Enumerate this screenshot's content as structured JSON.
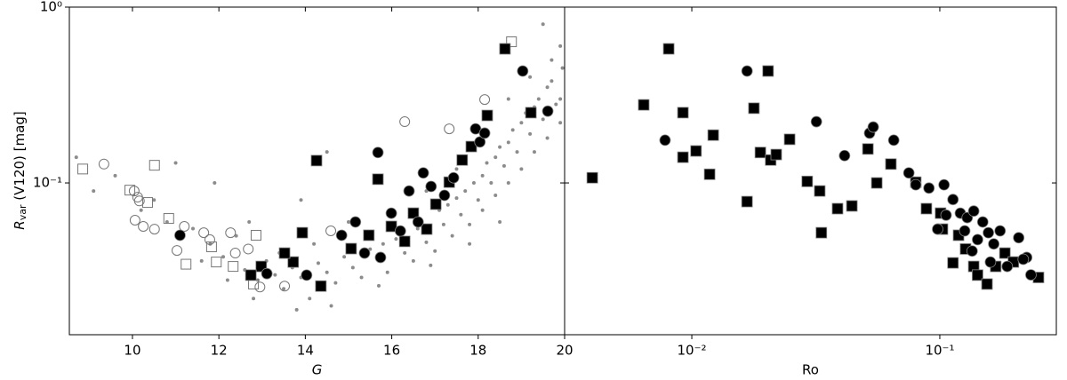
{
  "chart_data": [
    {
      "type": "scatter",
      "xlabel": "G",
      "ylabel": [
        "R",
        "var",
        " (V120) [mag]"
      ],
      "xlim": [
        8.54,
        20
      ],
      "xticks": [
        10,
        12,
        14,
        16,
        18,
        20
      ],
      "ylim": [
        0.0137,
        1
      ],
      "yscale": "log",
      "yticks": [
        {
          "value": 1,
          "label": "10⁰"
        },
        {
          "value": 0.1,
          "label": "10⁻¹"
        }
      ],
      "series": [
        {
          "marker": "dot",
          "color": "#8c8c8c",
          "x": [
            8.7,
            9.1,
            9.6,
            10.2,
            10.8,
            11.0,
            11.4,
            11.8,
            12.1,
            12.4,
            12.6,
            12.9,
            13.1,
            13.3,
            13.5,
            13.7,
            13.9,
            14.1,
            14.3,
            14.5,
            14.7,
            14.9,
            15.1,
            15.3,
            15.5,
            15.7,
            15.9,
            16.1,
            16.3,
            16.5,
            16.6,
            16.8,
            17.0,
            17.1,
            17.2,
            17.4,
            17.5,
            17.6,
            17.8,
            17.9,
            18.0,
            18.1,
            18.2,
            18.3,
            18.4,
            18.5,
            18.6,
            18.7,
            18.8,
            18.9,
            19.0,
            19.1,
            19.2,
            19.3,
            19.4,
            19.5,
            19.6,
            19.7,
            19.8,
            19.9,
            19.95,
            19.9,
            19.5,
            19.7,
            18.5,
            17.8,
            16.9,
            15.7,
            14.6,
            13.8,
            12.8,
            12.2,
            11.6,
            16.0,
            15.0,
            14.5,
            13.9,
            17.5,
            18.7,
            19.2,
            16.8,
            15.4,
            14.2,
            13.4,
            12.7,
            11.9,
            10.5,
            19.9,
            19.6,
            19.3,
            19.0,
            18.7,
            18.4,
            18.1,
            17.7,
            17.3,
            16.7,
            16.2,
            15.8
          ],
          "values": [
            0.14,
            0.09,
            0.11,
            0.07,
            0.06,
            0.13,
            0.055,
            0.045,
            0.038,
            0.05,
            0.032,
            0.028,
            0.036,
            0.03,
            0.025,
            0.033,
            0.029,
            0.022,
            0.035,
            0.031,
            0.027,
            0.038,
            0.033,
            0.029,
            0.042,
            0.036,
            0.031,
            0.048,
            0.04,
            0.036,
            0.055,
            0.046,
            0.041,
            0.07,
            0.058,
            0.05,
            0.082,
            0.066,
            0.058,
            0.1,
            0.08,
            0.07,
            0.13,
            0.1,
            0.085,
            0.16,
            0.125,
            0.1,
            0.2,
            0.15,
            0.12,
            0.25,
            0.19,
            0.15,
            0.3,
            0.23,
            0.18,
            0.38,
            0.28,
            0.22,
            0.45,
            0.6,
            0.8,
            0.5,
            0.06,
            0.045,
            0.034,
            0.026,
            0.02,
            0.019,
            0.022,
            0.028,
            0.036,
            0.07,
            0.06,
            0.15,
            0.08,
            0.12,
            0.3,
            0.4,
            0.09,
            0.05,
            0.045,
            0.04,
            0.06,
            0.1,
            0.08,
            0.3,
            0.35,
            0.27,
            0.22,
            0.17,
            0.14,
            0.11,
            0.09,
            0.075,
            0.06,
            0.052,
            0.045
          ]
        },
        {
          "marker": "open-circle",
          "color": "#777777",
          "x": [
            9.34,
            10.04,
            10.12,
            10.16,
            10.06,
            10.25,
            10.51,
            11.2,
            11.65,
            11.79,
            12.27,
            12.38,
            12.68,
            12.95,
            13.52,
            14.59,
            16.3,
            17.33,
            18.15,
            11.03
          ],
          "values": [
            0.128,
            0.09,
            0.083,
            0.079,
            0.0614,
            0.0566,
            0.0546,
            0.0566,
            0.0521,
            0.0476,
            0.0521,
            0.0399,
            0.0421,
            0.0256,
            0.0259,
            0.0534,
            0.223,
            0.203,
            0.298,
            0.0413
          ]
        },
        {
          "marker": "open-square",
          "color": "#777777",
          "x": [
            8.85,
            9.94,
            10.51,
            10.35,
            10.84,
            11.83,
            11.94,
            12.33,
            12.86,
            12.8,
            18.77,
            11.24
          ],
          "values": [
            0.12,
            0.091,
            0.126,
            0.0774,
            0.0628,
            0.0433,
            0.0355,
            0.0335,
            0.0504,
            0.0266,
            0.635,
            0.0345
          ]
        },
        {
          "marker": "square",
          "color": "#000000",
          "x": [
            18.62,
            19.22,
            14.26,
            15.68,
            18.21,
            13.93,
            13.72,
            12.98,
            14.36,
            15.47,
            15.99,
            16.5,
            17.02,
            17.33,
            17.63,
            17.84,
            15.06,
            16.81,
            16.3,
            13.52,
            12.74
          ],
          "values": [
            0.579,
            0.251,
            0.134,
            0.105,
            0.242,
            0.0521,
            0.0355,
            0.0335,
            0.0259,
            0.0504,
            0.0566,
            0.0673,
            0.0757,
            0.101,
            0.135,
            0.161,
            0.0423,
            0.0546,
            0.0465,
            0.0399,
            0.0299
          ]
        },
        {
          "marker": "circle",
          "color": "#000000",
          "x": [
            19.03,
            19.61,
            15.68,
            16.73,
            17.94,
            18.04,
            18.15,
            16.4,
            16.91,
            17.43,
            15.99,
            16.2,
            16.61,
            15.16,
            14.84,
            15.37,
            14.03,
            13.11,
            11.1,
            15.74,
            17.22
          ],
          "values": [
            0.433,
            0.256,
            0.149,
            0.114,
            0.203,
            0.171,
            0.192,
            0.09,
            0.0955,
            0.107,
            0.0673,
            0.0533,
            0.06,
            0.06,
            0.0504,
            0.0399,
            0.0299,
            0.0305,
            0.0504,
            0.0377,
            0.085
          ]
        }
      ]
    },
    {
      "type": "scatter",
      "xlabel": "Ro",
      "xscale": "log",
      "xlim": [
        0.00307,
        0.295
      ],
      "xticks": [
        {
          "value": 0.01,
          "label": "10⁻²"
        },
        {
          "value": 0.1,
          "label": "10⁻¹"
        }
      ],
      "ylim": [
        0.0137,
        1
      ],
      "yscale": "log",
      "series": [
        {
          "marker": "square",
          "color": "#000000",
          "x": [
            0.00397,
            0.0064,
            0.00807,
            0.00921,
            0.00921,
            0.0104,
            0.0118,
            0.0122,
            0.0167,
            0.0178,
            0.0189,
            0.0203,
            0.0208,
            0.0219,
            0.0248,
            0.0292,
            0.0328,
            0.0333,
            0.0387,
            0.0442,
            0.0513,
            0.0557,
            0.0635,
            0.08,
            0.0883,
            0.1025,
            0.113,
            0.127,
            0.137,
            0.142,
            0.155,
            0.168,
            0.183,
            0.198,
            0.25,
            0.1007,
            0.119
          ],
          "values": [
            0.107,
            0.278,
            0.579,
            0.251,
            0.14,
            0.152,
            0.112,
            0.187,
            0.0783,
            0.266,
            0.149,
            0.433,
            0.135,
            0.145,
            0.177,
            0.102,
            0.09,
            0.0521,
            0.0714,
            0.074,
            0.156,
            0.1,
            0.128,
            0.101,
            0.0714,
            0.0546,
            0.0351,
            0.0421,
            0.0335,
            0.0299,
            0.0266,
            0.0335,
            0.0399,
            0.0355,
            0.029,
            0.0673,
            0.0504
          ]
        },
        {
          "marker": "circle",
          "color": "#000000",
          "x": [
            0.0078,
            0.0167,
            0.0318,
            0.0413,
            0.0521,
            0.0539,
            0.0652,
            0.075,
            0.08,
            0.0904,
            0.104,
            0.113,
            0.121,
            0.129,
            0.137,
            0.149,
            0.157,
            0.165,
            0.175,
            0.208,
            0.224,
            0.233,
            0.098,
            0.106,
            0.142,
            0.126,
            0.16,
            0.217,
            0.135,
            0.187
          ],
          "values": [
            0.175,
            0.433,
            0.223,
            0.143,
            0.192,
            0.208,
            0.175,
            0.114,
            0.0976,
            0.0935,
            0.0976,
            0.0805,
            0.0673,
            0.0635,
            0.0692,
            0.06,
            0.0521,
            0.045,
            0.0534,
            0.0488,
            0.0377,
            0.03,
            0.0546,
            0.0656,
            0.0476,
            0.0534,
            0.0355,
            0.0368,
            0.041,
            0.0335
          ]
        }
      ]
    }
  ]
}
